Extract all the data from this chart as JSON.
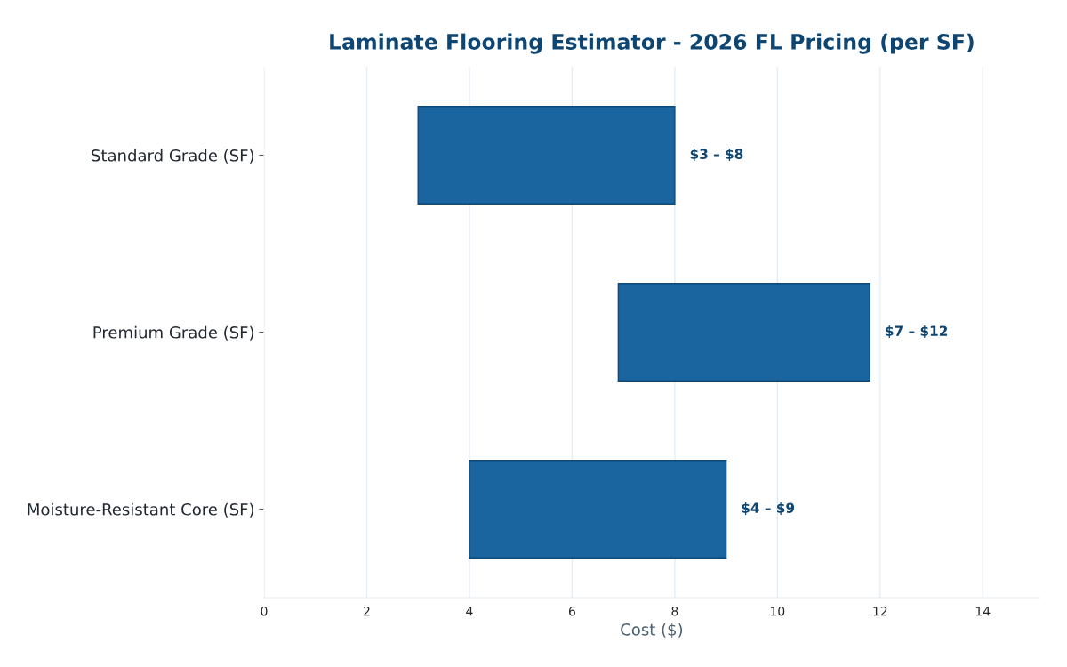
{
  "chart_data": {
    "type": "bar",
    "orientation": "horizontal",
    "title": "Laminate Flooring Estimator - 2026 FL Pricing (per SF)",
    "xlabel": "Cost ($)",
    "categories": [
      "Standard Grade (SF)",
      "Premium Grade (SF)",
      "Moisture-Resistant Core (SF)"
    ],
    "base": [
      3,
      6.9,
      4
    ],
    "values": [
      5,
      4.9,
      5
    ],
    "annotations": [
      {
        "text": "$3 – $8",
        "x": 8,
        "y": "Standard Grade (SF)"
      },
      {
        "text": "$7 – $12",
        "x": 11.8,
        "y": "Premium Grade (SF)"
      },
      {
        "text": "$4 – $9",
        "x": 9,
        "y": "Moisture-Resistant Core (SF)"
      }
    ],
    "color": "#1a64a0",
    "xlim": [
      0,
      15.1
    ],
    "xticks": [
      0,
      2,
      4,
      6,
      8,
      10,
      12,
      14
    ],
    "grid": "x",
    "legend": false
  }
}
